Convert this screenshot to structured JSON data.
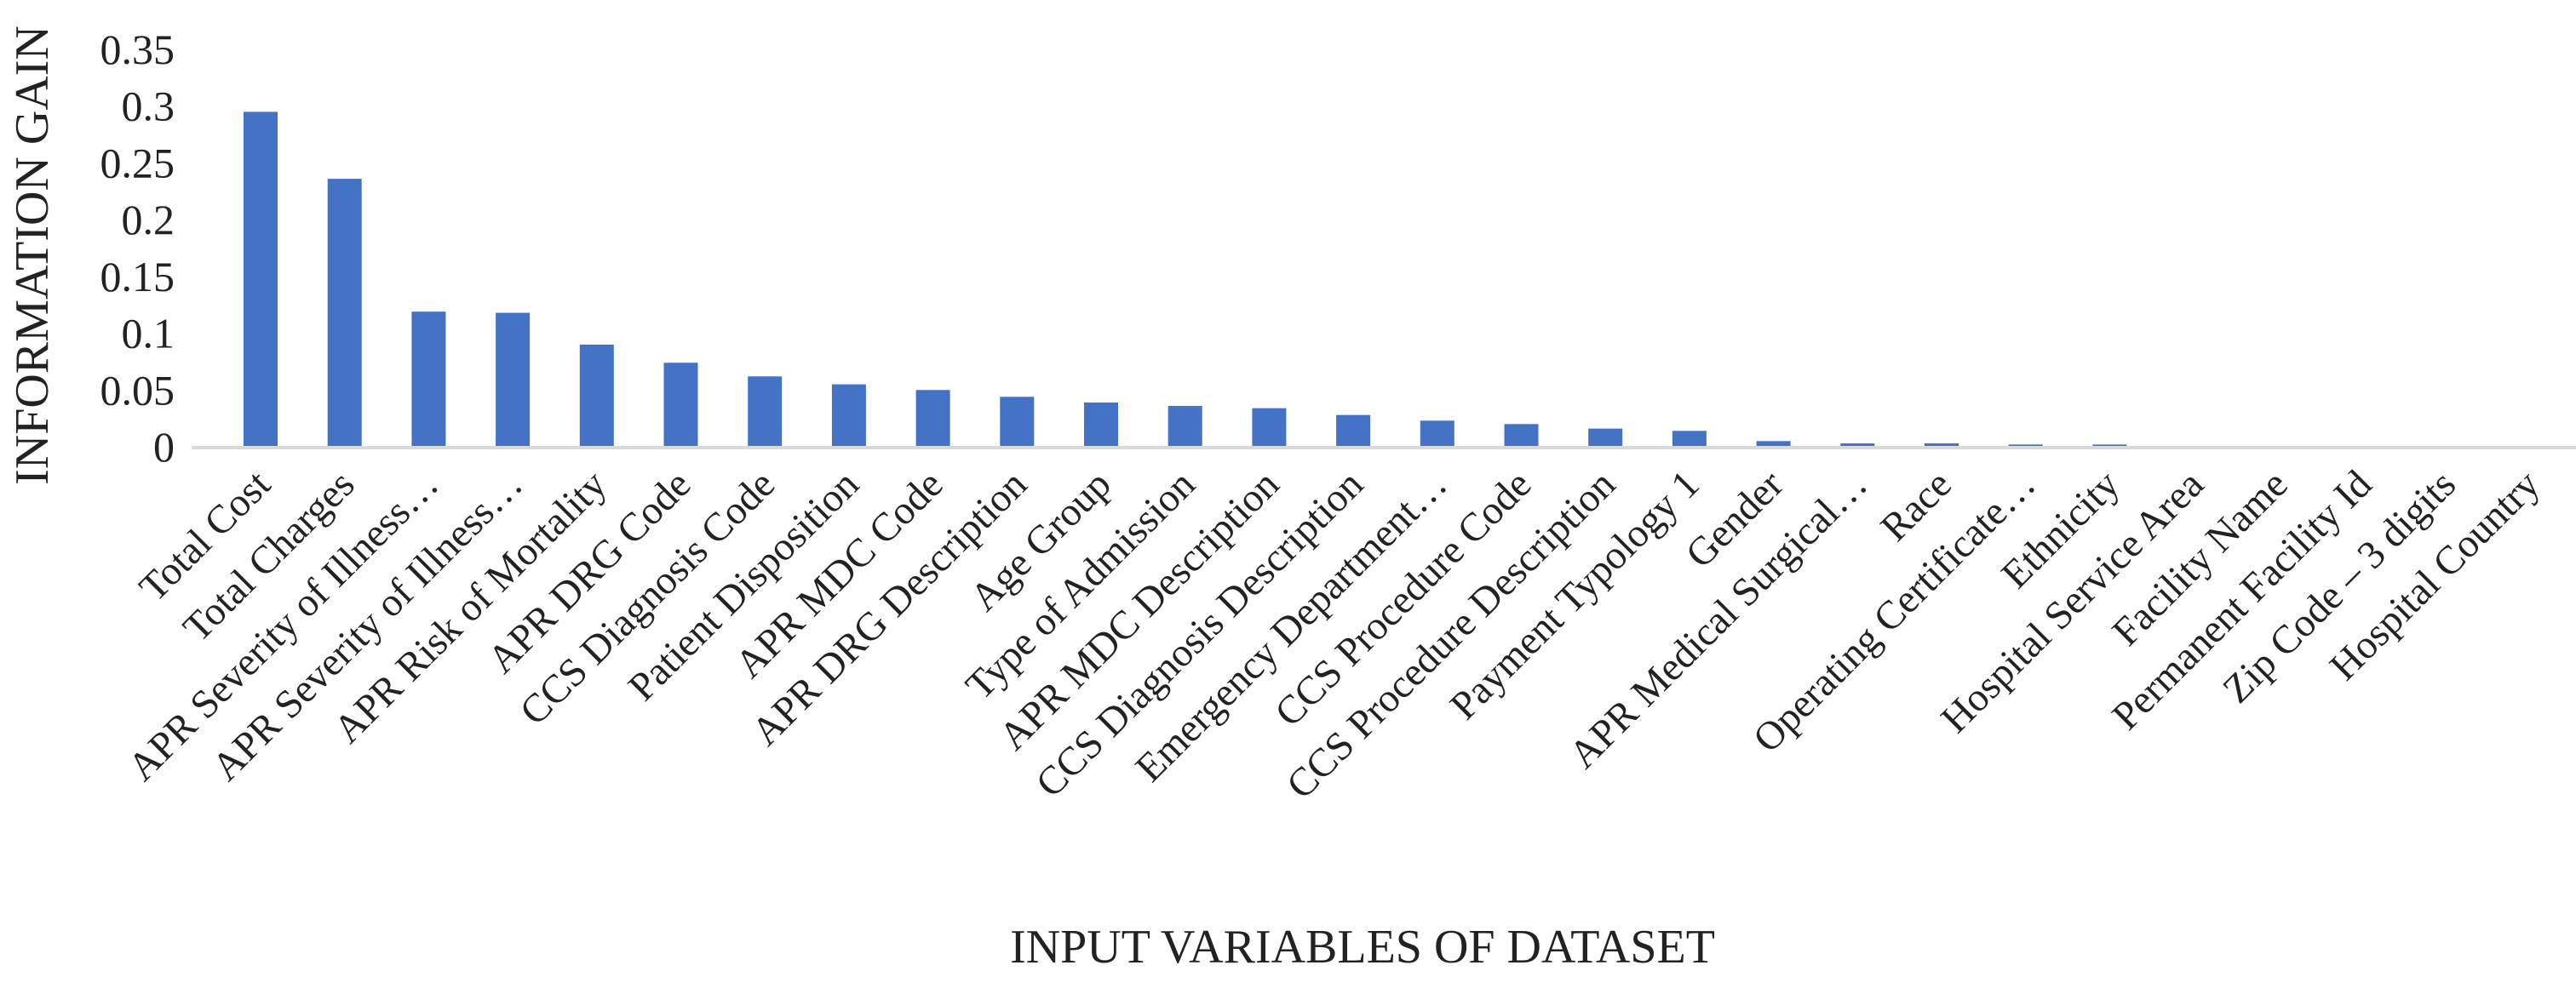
{
  "chart_data": {
    "type": "bar",
    "title": "",
    "xlabel": "INPUT VARIABLES OF DATASET",
    "ylabel": "INFORMATION GAIN",
    "ylim": [
      0,
      0.35
    ],
    "yticks": [
      "0",
      "0.05",
      "0.1",
      "0.15",
      "0.2",
      "0.25",
      "0.3",
      "0.35"
    ],
    "grid": false,
    "legend": "none",
    "bar_color": "#4472C4",
    "axis_color": "#d9d9d9",
    "categories": [
      "Total Cost",
      "Total Charges",
      "APR Severity of Illness…",
      "APR Severity of Illness…",
      "APR Risk of Mortality",
      "APR DRG Code",
      "CCS Diagnosis Code",
      "Patient Disposition",
      "APR MDC Code",
      "APR DRG Description",
      "Age Group",
      "Type of Admission",
      "APR MDC Description",
      "CCS Diagnosis Description",
      "Emergency Department…",
      "CCS Procedure Code",
      "CCS Procedure Description",
      "Payment Typology 1",
      "Gender",
      "APR Medical Surgical…",
      "Race",
      "Operating Certificate…",
      "Ethnicity",
      "Hospital Service Area",
      "Facility Name",
      "Permanent Facility Id",
      "Zip Code – 3 digits",
      "Hospital Country"
    ],
    "values": [
      0.295,
      0.236,
      0.119,
      0.118,
      0.09,
      0.074,
      0.062,
      0.055,
      0.05,
      0.044,
      0.039,
      0.036,
      0.034,
      0.028,
      0.023,
      0.02,
      0.016,
      0.014,
      0.005,
      0.003,
      0.003,
      0.002,
      0.002,
      0.0,
      0.0,
      0.0,
      0.0,
      0.0
    ]
  }
}
